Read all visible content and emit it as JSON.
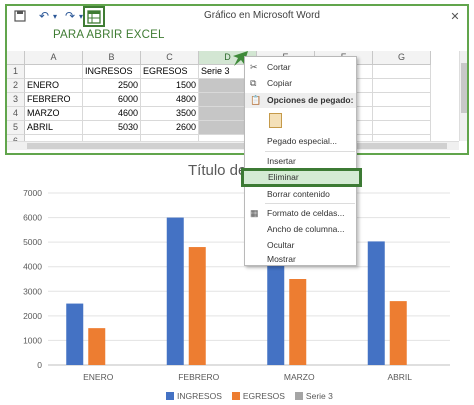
{
  "window": {
    "title": "Gráfico en Microsoft Word",
    "open_excel_label": "PARA ABRIR EXCEL"
  },
  "sheet": {
    "columns": [
      "A",
      "B",
      "C",
      "D",
      "E",
      "F",
      "G"
    ],
    "rows": [
      {
        "num": "1",
        "cells": [
          "",
          "INGRESOS",
          "EGRESOS",
          "Serie 3",
          "",
          "",
          ""
        ]
      },
      {
        "num": "2",
        "cells": [
          "ENERO",
          "2500",
          "1500",
          "",
          "",
          "",
          ""
        ]
      },
      {
        "num": "3",
        "cells": [
          "FEBRERO",
          "6000",
          "4800",
          "",
          "",
          "",
          ""
        ]
      },
      {
        "num": "4",
        "cells": [
          "MARZO",
          "4600",
          "3500",
          "",
          "",
          "",
          ""
        ]
      },
      {
        "num": "5",
        "cells": [
          "ABRIL",
          "5030",
          "2600",
          "",
          "",
          "",
          ""
        ]
      },
      {
        "num": "6",
        "cells": [
          "",
          "",
          "",
          "",
          "",
          "",
          ""
        ]
      }
    ]
  },
  "context_menu": {
    "items": [
      {
        "label": "Cortar",
        "icon": "scissors-icon",
        "type": "item"
      },
      {
        "label": "Copiar",
        "icon": "copy-icon",
        "type": "item"
      },
      {
        "label": "Opciones de pegado:",
        "icon": "paste-icon",
        "type": "header"
      },
      {
        "label": "",
        "icon": "paste-option-icon",
        "type": "icon-row"
      },
      {
        "label": "Pegado especial...",
        "icon": "",
        "type": "item"
      },
      {
        "label": "Insertar",
        "icon": "",
        "type": "item"
      },
      {
        "label": "Eliminar",
        "icon": "",
        "type": "highlight"
      },
      {
        "label": "Borrar contenido",
        "icon": "",
        "type": "item"
      },
      {
        "label": "Formato de celdas...",
        "icon": "format-cells-icon",
        "type": "item"
      },
      {
        "label": "Ancho de columna...",
        "icon": "",
        "type": "item"
      },
      {
        "label": "Ocultar",
        "icon": "",
        "type": "item"
      },
      {
        "label": "Mostrar",
        "icon": "",
        "type": "item"
      }
    ]
  },
  "colors": {
    "accent_green": "#3c7a34",
    "ingresos": "#4472c4",
    "egresos": "#ed7d31",
    "serie3": "#a5a5a5"
  },
  "chart_data": {
    "type": "bar",
    "title": "Título del gráfico",
    "categories": [
      "ENERO",
      "FEBRERO",
      "MARZO",
      "ABRIL"
    ],
    "series": [
      {
        "name": "INGRESOS",
        "values": [
          2500,
          6000,
          4600,
          5030
        ]
      },
      {
        "name": "EGRESOS",
        "values": [
          1500,
          4800,
          3500,
          2600
        ]
      },
      {
        "name": "Serie 3",
        "values": [
          0,
          0,
          0,
          0
        ]
      }
    ],
    "ylim": [
      0,
      7000
    ],
    "yticks": [
      "0",
      "1000",
      "2000",
      "3000",
      "4000",
      "5000",
      "6000",
      "7000"
    ],
    "grid": true,
    "legend": "bottom"
  }
}
